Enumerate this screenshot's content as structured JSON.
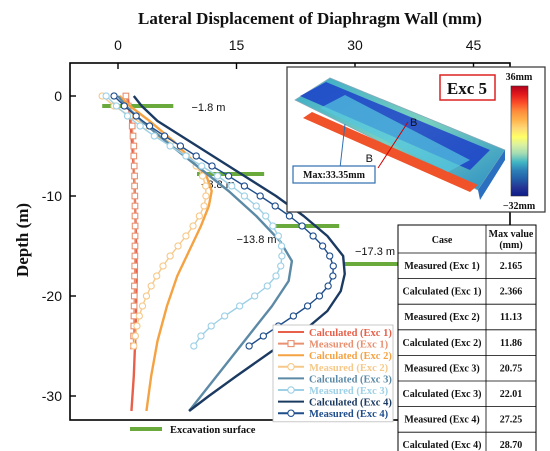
{
  "chart_data": {
    "type": "line",
    "title": "Lateral Displacement of Diaphragm Wall (mm)",
    "xlabel": "Lateral Displacement of Diaphragm Wall (mm)",
    "ylabel": "Depth (m)",
    "xlim": [
      -5,
      50
    ],
    "ylim": [
      -34,
      2.5
    ],
    "x_ticks": [
      0,
      15,
      30,
      45
    ],
    "y_ticks": [
      0,
      -10,
      -20,
      -30
    ],
    "legend_position": "bottom-right",
    "series": [
      {
        "name": "Calculated (Exc 1)",
        "color": "#e8604a",
        "marker": "none",
        "x": [
          1.2,
          1.4,
          1.6,
          1.9,
          2.1,
          2.2,
          2.3,
          2.366,
          2.3,
          2.2,
          2.0,
          1.7
        ],
        "y": [
          0,
          -1,
          -3,
          -6,
          -9,
          -12,
          -15,
          -18,
          -21,
          -24,
          -28,
          -31.5
        ]
      },
      {
        "name": "Measured (Exc 1)",
        "color": "#e89070",
        "marker": "square",
        "x": [
          1.0,
          1.3,
          1.6,
          1.8,
          1.9,
          2.0,
          2.0,
          2.05,
          2.1,
          2.1,
          2.13,
          2.15,
          2.15,
          2.165,
          2.16,
          2.15,
          2.14,
          2.12,
          2.1,
          2.08,
          2.06,
          2.04,
          2.02,
          2.0,
          1.98,
          1.96
        ],
        "y": [
          0,
          -1,
          -2,
          -3,
          -4,
          -5,
          -6,
          -7,
          -8,
          -9,
          -10,
          -11,
          -12,
          -13,
          -14,
          -15,
          -16,
          -17,
          -18,
          -19,
          -20,
          -21,
          -22,
          -23,
          -24,
          -25
        ]
      },
      {
        "name": "Calculated (Exc 2)",
        "color": "#f5a243",
        "marker": "none",
        "x": [
          0.2,
          1.5,
          4.0,
          7.0,
          9.5,
          11.2,
          11.86,
          11.5,
          10.5,
          9.0,
          7.5,
          6.2,
          5.0,
          4.2,
          3.6
        ],
        "y": [
          0,
          -1,
          -2.5,
          -4.5,
          -6.5,
          -8,
          -9.5,
          -11,
          -13,
          -15.5,
          -18,
          -21,
          -24.5,
          -28,
          -31.5
        ]
      },
      {
        "name": "Measured (Exc 2)",
        "color": "#f6c98a",
        "marker": "circle-open",
        "x": [
          -2.0,
          -0.5,
          1.5,
          3.5,
          5.5,
          7.2,
          8.7,
          9.9,
          10.7,
          11.1,
          11.13,
          10.9,
          10.3,
          9.5,
          8.6,
          7.6,
          6.6,
          5.7,
          4.9,
          4.2,
          3.6,
          3.1,
          2.7,
          2.4,
          2.2,
          2.0
        ],
        "y": [
          0,
          -1,
          -2,
          -3,
          -4,
          -5,
          -6,
          -7,
          -8,
          -9,
          -10,
          -11,
          -12,
          -13,
          -14,
          -15,
          -16,
          -17,
          -18,
          -19,
          -20,
          -21,
          -22,
          -23,
          -24,
          -25
        ]
      },
      {
        "name": "Calculated (Exc 3)",
        "color": "#5c8aa6",
        "marker": "none",
        "x": [
          0.0,
          1.0,
          3.0,
          6.0,
          10.0,
          14.0,
          17.5,
          20.5,
          22.01,
          21.6,
          19.5,
          16.5,
          13.5,
          11.0,
          9.0
        ],
        "y": [
          0,
          -1,
          -2.5,
          -4.5,
          -7,
          -9.5,
          -12,
          -14.5,
          -16.5,
          -18.5,
          -21,
          -24,
          -27,
          -29.5,
          -31.5
        ]
      },
      {
        "name": "Measured (Exc 3)",
        "color": "#9ed0e6",
        "marker": "circle-open",
        "x": [
          -1.5,
          -0.2,
          1.2,
          2.8,
          4.6,
          6.6,
          8.6,
          10.6,
          12.6,
          14.4,
          16.0,
          17.5,
          18.7,
          19.6,
          20.3,
          20.7,
          20.75,
          20.6,
          20.0,
          18.9,
          17.3,
          15.4,
          13.5,
          11.8,
          10.5,
          9.6
        ],
        "y": [
          0,
          -1,
          -2,
          -3,
          -4,
          -5,
          -6,
          -7,
          -8,
          -9,
          -10,
          -11,
          -12,
          -13,
          -14,
          -15,
          -16,
          -17,
          -18,
          -19,
          -20,
          -21,
          -22,
          -23,
          -24,
          -25
        ]
      },
      {
        "name": "Calculated (Exc 4)",
        "color": "#1b3a62",
        "marker": "none",
        "x": [
          2.0,
          3.0,
          5.0,
          8.0,
          12.0,
          16.0,
          20.0,
          23.5,
          26.5,
          28.5,
          28.7,
          28.2,
          26.5,
          23.5,
          19.5,
          15.0,
          11.5,
          9.0
        ],
        "y": [
          0,
          -1,
          -2.5,
          -4,
          -6,
          -8,
          -10,
          -12,
          -14,
          -16,
          -17.8,
          -19.5,
          -21.5,
          -23.5,
          -25.5,
          -28,
          -30,
          -31.5
        ]
      },
      {
        "name": "Measured (Exc 4)",
        "color": "#1f4e8c",
        "marker": "circle-open",
        "x": [
          -0.5,
          0.8,
          2.3,
          4.0,
          5.9,
          7.9,
          9.9,
          11.9,
          14.0,
          16.0,
          18.0,
          19.9,
          21.7,
          23.3,
          24.7,
          25.9,
          26.8,
          27.25,
          27.2,
          26.6,
          25.5,
          24.0,
          22.2,
          20.3,
          18.4,
          16.6
        ],
        "y": [
          0,
          -1,
          -2,
          -3,
          -4,
          -5,
          -6,
          -7,
          -8,
          -9,
          -10,
          -11,
          -12,
          -13,
          -14,
          -15,
          -16,
          -17,
          -18,
          -19,
          -20,
          -21,
          -22,
          -23,
          -24,
          -25
        ]
      }
    ],
    "excavation_surfaces": [
      {
        "label": "−1.8 m",
        "depth": -1.0,
        "x_start": -2,
        "x_end": 7
      },
      {
        "label": "−8.8 m",
        "depth": -7.8,
        "x_start": 10,
        "x_end": 18.5
      },
      {
        "label": "−13.8 m",
        "depth": -13.0,
        "x_start": 20,
        "x_end": 28
      },
      {
        "label": "−17.3 m",
        "depth": -16.8,
        "x_start": 28.5,
        "x_end": 37.5
      }
    ],
    "excavation_legend": "Excavation surface",
    "inset": {
      "stage": "Exc 5",
      "max_label": "Max:33.35mm",
      "section_marker": "B",
      "colorbar_max": "36mm",
      "colorbar_min": "−32mm",
      "colorbar_colors": [
        "#b3001b",
        "#e31a1c",
        "#fc4e2a",
        "#fd8d3c",
        "#feb24c",
        "#fed976",
        "#ffff66",
        "#d9f0a3",
        "#a1dab4",
        "#41b6c4",
        "#2c7fb8",
        "#225ea8",
        "#253494",
        "#0c1a8a"
      ]
    },
    "table": {
      "headers": [
        "Case",
        "Max value (mm)"
      ],
      "rows": [
        [
          "Measured (Exc 1)",
          "2.165"
        ],
        [
          "Calculated (Exc 1)",
          "2.366"
        ],
        [
          "Measured (Exc 2)",
          "11.13"
        ],
        [
          "Calculated (Exc 2)",
          "11.86"
        ],
        [
          "Measured (Exc 3)",
          "20.75"
        ],
        [
          "Calculated (Exc 3)",
          "22.01"
        ],
        [
          "Measured (Exc 4)",
          "27.25"
        ],
        [
          "Calculated (Exc 4)",
          "28.70"
        ]
      ]
    }
  }
}
